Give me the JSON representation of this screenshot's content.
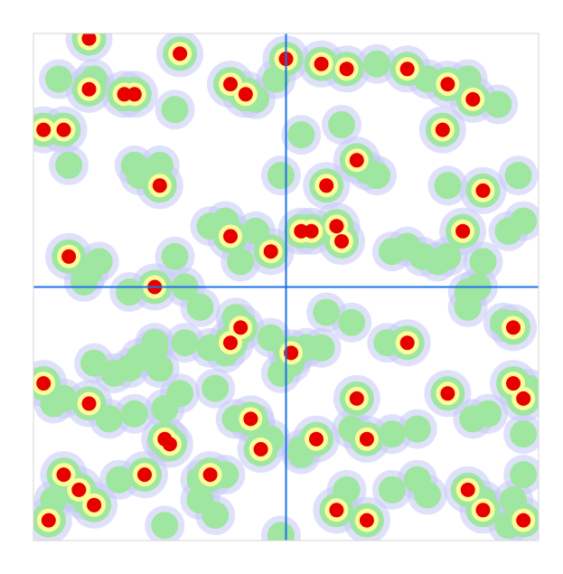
{
  "chart_data": {
    "type": "heatmap",
    "title": "",
    "xlabel": "",
    "ylabel": "",
    "xlim": [
      0,
      1
    ],
    "ylim": [
      0,
      1
    ],
    "crosshair": {
      "x": 0.5,
      "y": 0.5
    },
    "colors": {
      "background": "#ffffff",
      "frame": "#d4d4d4",
      "crosshair": "#1a73e8",
      "ramp": [
        "#c4c8f6",
        "#9fe6a0",
        "#fbfb9a",
        "#e60000"
      ]
    },
    "points": [
      [
        0.11,
        0.99,
        3
      ],
      [
        0.29,
        0.96,
        3
      ],
      [
        0.5,
        0.95,
        3
      ],
      [
        0.57,
        0.94,
        3
      ],
      [
        0.62,
        0.93,
        3
      ],
      [
        0.68,
        0.94,
        2
      ],
      [
        0.74,
        0.93,
        3
      ],
      [
        0.78,
        0.91,
        2
      ],
      [
        0.82,
        0.9,
        3
      ],
      [
        0.87,
        0.87,
        3
      ],
      [
        0.11,
        0.89,
        3
      ],
      [
        0.2,
        0.88,
        3
      ],
      [
        0.18,
        0.88,
        3
      ],
      [
        0.39,
        0.9,
        3
      ],
      [
        0.42,
        0.88,
        3
      ],
      [
        0.44,
        0.87,
        2
      ],
      [
        0.48,
        0.91,
        2
      ],
      [
        0.05,
        0.91,
        2
      ],
      [
        0.12,
        0.91,
        2
      ],
      [
        0.02,
        0.81,
        3
      ],
      [
        0.06,
        0.81,
        3
      ],
      [
        0.28,
        0.85,
        2
      ],
      [
        0.61,
        0.82,
        2
      ],
      [
        0.53,
        0.8,
        2
      ],
      [
        0.81,
        0.81,
        3
      ],
      [
        0.86,
        0.91,
        2
      ],
      [
        0.92,
        0.86,
        2
      ],
      [
        0.64,
        0.75,
        3
      ],
      [
        0.66,
        0.73,
        2
      ],
      [
        0.68,
        0.72,
        2
      ],
      [
        0.58,
        0.7,
        3
      ],
      [
        0.49,
        0.72,
        2
      ],
      [
        0.2,
        0.74,
        2
      ],
      [
        0.25,
        0.74,
        2
      ],
      [
        0.07,
        0.74,
        2
      ],
      [
        0.25,
        0.7,
        3
      ],
      [
        0.21,
        0.72,
        2
      ],
      [
        0.38,
        0.63,
        2
      ],
      [
        0.35,
        0.62,
        2
      ],
      [
        0.39,
        0.6,
        3
      ],
      [
        0.44,
        0.61,
        2
      ],
      [
        0.53,
        0.61,
        3
      ],
      [
        0.55,
        0.61,
        3
      ],
      [
        0.6,
        0.62,
        3
      ],
      [
        0.61,
        0.59,
        3
      ],
      [
        0.47,
        0.57,
        3
      ],
      [
        0.41,
        0.55,
        2
      ],
      [
        0.07,
        0.56,
        3
      ],
      [
        0.13,
        0.55,
        2
      ],
      [
        0.11,
        0.53,
        2
      ],
      [
        0.1,
        0.51,
        2
      ],
      [
        0.82,
        0.7,
        2
      ],
      [
        0.89,
        0.69,
        3
      ],
      [
        0.96,
        0.72,
        2
      ],
      [
        0.85,
        0.61,
        3
      ],
      [
        0.94,
        0.61,
        2
      ],
      [
        0.97,
        0.63,
        2
      ],
      [
        0.82,
        0.56,
        2
      ],
      [
        0.89,
        0.55,
        2
      ],
      [
        0.86,
        0.49,
        2
      ],
      [
        0.88,
        0.5,
        2
      ],
      [
        0.86,
        0.46,
        2
      ],
      [
        0.93,
        0.43,
        2
      ],
      [
        0.95,
        0.42,
        3
      ],
      [
        0.71,
        0.57,
        2
      ],
      [
        0.74,
        0.58,
        2
      ],
      [
        0.77,
        0.56,
        2
      ],
      [
        0.8,
        0.55,
        2
      ],
      [
        0.28,
        0.56,
        2
      ],
      [
        0.3,
        0.5,
        2
      ],
      [
        0.24,
        0.5,
        3
      ],
      [
        0.19,
        0.49,
        2
      ],
      [
        0.33,
        0.46,
        2
      ],
      [
        0.4,
        0.44,
        2
      ],
      [
        0.41,
        0.42,
        3
      ],
      [
        0.39,
        0.39,
        3
      ],
      [
        0.35,
        0.38,
        2
      ],
      [
        0.3,
        0.39,
        2
      ],
      [
        0.24,
        0.38,
        2
      ],
      [
        0.21,
        0.36,
        2
      ],
      [
        0.25,
        0.34,
        2
      ],
      [
        0.19,
        0.34,
        2
      ],
      [
        0.24,
        0.39,
        2
      ],
      [
        0.38,
        0.37,
        2
      ],
      [
        0.51,
        0.37,
        3
      ],
      [
        0.49,
        0.33,
        2
      ],
      [
        0.54,
        0.38,
        2
      ],
      [
        0.57,
        0.38,
        2
      ],
      [
        0.51,
        0.35,
        2
      ],
      [
        0.47,
        0.4,
        2
      ],
      [
        0.58,
        0.45,
        2
      ],
      [
        0.63,
        0.43,
        2
      ],
      [
        0.74,
        0.39,
        3
      ],
      [
        0.7,
        0.39,
        2
      ],
      [
        0.02,
        0.31,
        3
      ],
      [
        0.04,
        0.27,
        2
      ],
      [
        0.06,
        0.28,
        2
      ],
      [
        0.12,
        0.35,
        2
      ],
      [
        0.16,
        0.33,
        2
      ],
      [
        0.11,
        0.27,
        3
      ],
      [
        0.15,
        0.24,
        2
      ],
      [
        0.29,
        0.29,
        2
      ],
      [
        0.26,
        0.26,
        2
      ],
      [
        0.36,
        0.3,
        2
      ],
      [
        0.2,
        0.25,
        2
      ],
      [
        0.4,
        0.24,
        2
      ],
      [
        0.43,
        0.24,
        3
      ],
      [
        0.44,
        0.23,
        2
      ],
      [
        0.26,
        0.2,
        3
      ],
      [
        0.27,
        0.19,
        3
      ],
      [
        0.45,
        0.18,
        3
      ],
      [
        0.47,
        0.2,
        2
      ],
      [
        0.53,
        0.17,
        2
      ],
      [
        0.56,
        0.2,
        3
      ],
      [
        0.53,
        0.18,
        2
      ],
      [
        0.63,
        0.22,
        2
      ],
      [
        0.66,
        0.2,
        3
      ],
      [
        0.64,
        0.28,
        3
      ],
      [
        0.71,
        0.21,
        2
      ],
      [
        0.76,
        0.22,
        2
      ],
      [
        0.82,
        0.29,
        3
      ],
      [
        0.87,
        0.24,
        2
      ],
      [
        0.9,
        0.25,
        2
      ],
      [
        0.97,
        0.21,
        2
      ],
      [
        0.97,
        0.28,
        3
      ],
      [
        0.98,
        0.3,
        2
      ],
      [
        0.95,
        0.31,
        3
      ],
      [
        0.06,
        0.13,
        3
      ],
      [
        0.09,
        0.1,
        3
      ],
      [
        0.1,
        0.08,
        2
      ],
      [
        0.12,
        0.07,
        3
      ],
      [
        0.17,
        0.12,
        2
      ],
      [
        0.22,
        0.13,
        3
      ],
      [
        0.03,
        0.04,
        3
      ],
      [
        0.04,
        0.08,
        2
      ],
      [
        0.33,
        0.12,
        2
      ],
      [
        0.35,
        0.13,
        3
      ],
      [
        0.38,
        0.13,
        2
      ],
      [
        0.33,
        0.08,
        2
      ],
      [
        0.26,
        0.03,
        2
      ],
      [
        0.36,
        0.05,
        2
      ],
      [
        0.49,
        0.01,
        2
      ],
      [
        0.6,
        0.06,
        3
      ],
      [
        0.62,
        0.1,
        2
      ],
      [
        0.66,
        0.04,
        3
      ],
      [
        0.71,
        0.1,
        2
      ],
      [
        0.76,
        0.12,
        2
      ],
      [
        0.78,
        0.09,
        2
      ],
      [
        0.86,
        0.1,
        3
      ],
      [
        0.89,
        0.08,
        2
      ],
      [
        0.89,
        0.06,
        3
      ],
      [
        0.95,
        0.08,
        2
      ],
      [
        0.97,
        0.04,
        3
      ],
      [
        0.94,
        0.03,
        2
      ],
      [
        0.97,
        0.13,
        2
      ]
    ]
  }
}
